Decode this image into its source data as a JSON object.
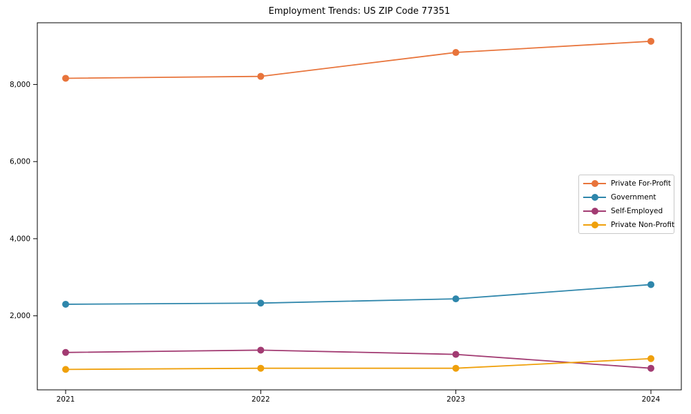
{
  "chart_data": {
    "type": "line",
    "title": "Employment Trends: US ZIP Code 77351",
    "categories": [
      "2021",
      "2022",
      "2023",
      "2024"
    ],
    "series": [
      {
        "name": "Private For-Profit",
        "color": "#E8743B",
        "values": [
          8160,
          8210,
          8830,
          9120
        ]
      },
      {
        "name": "Government",
        "color": "#2E86AB",
        "values": [
          2300,
          2330,
          2440,
          2810
        ]
      },
      {
        "name": "Self-Employed",
        "color": "#A23B72",
        "values": [
          1050,
          1110,
          1000,
          640
        ]
      },
      {
        "name": "Private Non-Profit",
        "color": "#EFA00B",
        "values": [
          610,
          640,
          640,
          890
        ]
      }
    ],
    "xlabel": "",
    "ylabel": "",
    "ylim": [
      80,
      9600
    ],
    "yticks": [
      {
        "value": 2000,
        "label": "2,000"
      },
      {
        "value": 4000,
        "label": "4,000"
      },
      {
        "value": 6000,
        "label": "6,000"
      },
      {
        "value": 8000,
        "label": "8,000"
      }
    ],
    "grid": false,
    "legend_position": "center right",
    "axis_color": "#000000",
    "background_color": "#ffffff"
  }
}
